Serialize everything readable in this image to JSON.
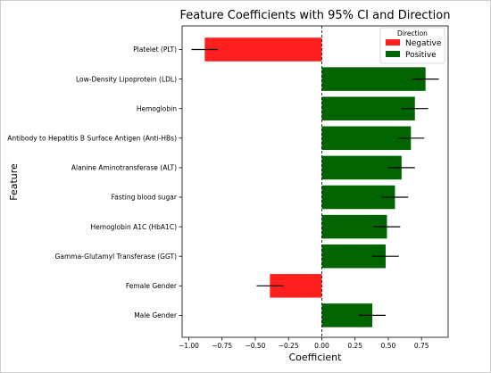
{
  "chart_data": {
    "type": "bar",
    "orientation": "horizontal",
    "title": "Feature Coefficients with 95% CI and Direction",
    "xlabel": "Coefficient",
    "ylabel": "Feature",
    "xlim": [
      -1.05,
      0.95
    ],
    "xticks": [
      -1.0,
      -0.75,
      -0.5,
      -0.25,
      0.0,
      0.25,
      0.5,
      0.75
    ],
    "xtick_labels": [
      "−1.00",
      "−0.75",
      "−0.50",
      "−0.25",
      "0.00",
      "0.25",
      "0.50",
      "0.75"
    ],
    "zero_line": "dashed",
    "grid": false,
    "legend": {
      "title": "Direction",
      "placement": "top-right",
      "entries": [
        {
          "label": "Negative",
          "color": "#ff1f1f"
        },
        {
          "label": "Positive",
          "color": "#006400"
        }
      ]
    },
    "categories": [
      "Platelet (PLT)",
      "Low-Density Lipoprotein (LDL)",
      "Hemoglobin",
      "Antibody to Hepatitis B Surface Antigen (Anti-HBs)",
      "Alanine Aminotransferase (ALT)",
      "Fasting blood sugar",
      "Hemoglobin A1C (HbA1C)",
      "Gamma-Glutamyl Transferase (GGT)",
      "Female Gender",
      "Male Gender"
    ],
    "values": [
      -0.88,
      0.78,
      0.7,
      0.67,
      0.6,
      0.55,
      0.49,
      0.48,
      -0.39,
      0.38
    ],
    "ci_lower": [
      -0.98,
      0.68,
      0.6,
      0.57,
      0.5,
      0.45,
      0.39,
      0.38,
      -0.49,
      0.28
    ],
    "ci_upper": [
      -0.78,
      0.88,
      0.8,
      0.77,
      0.7,
      0.65,
      0.59,
      0.58,
      -0.29,
      0.48
    ],
    "direction": [
      "Negative",
      "Positive",
      "Positive",
      "Positive",
      "Positive",
      "Positive",
      "Positive",
      "Positive",
      "Negative",
      "Positive"
    ]
  }
}
